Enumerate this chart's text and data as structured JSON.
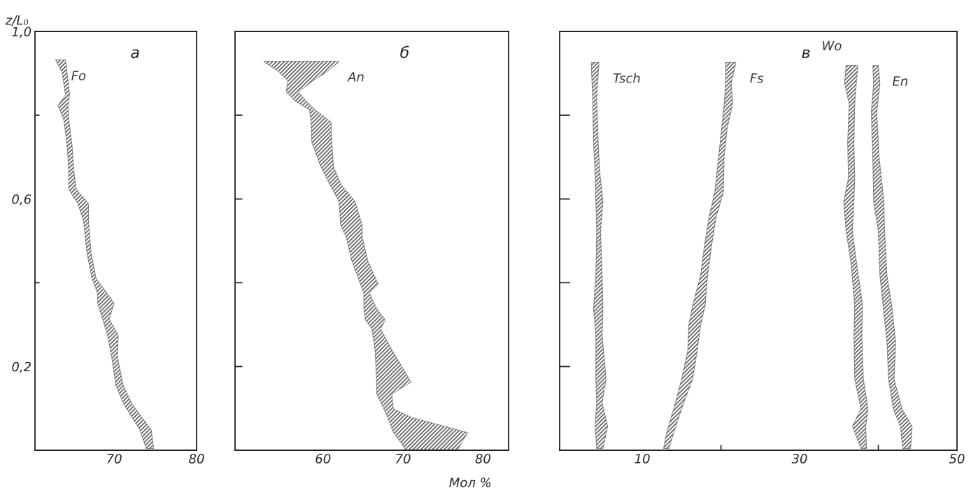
{
  "chart_data": [
    {
      "type": "area",
      "orientation": "horizontal",
      "title": "а",
      "ylabel": "z/L₀",
      "xlim": [
        60.4,
        80
      ],
      "xticks": [
        70,
        80
      ],
      "ylim": [
        0,
        1.0
      ],
      "yticks": [
        {
          "value": 0.2,
          "label": "0,2"
        },
        {
          "value": 0.4,
          "label": null
        },
        {
          "value": 0.6,
          "label": "0,6"
        },
        {
          "value": 0.8,
          "label": null
        },
        {
          "value": 1.0,
          "label": "1,0"
        }
      ],
      "grid": false,
      "series": [
        {
          "name": "Fo",
          "color": "#3a3a3a",
          "x": [
            0.932,
            0.902,
            0.849,
            0.823,
            0.789,
            0.728,
            0.668,
            0.623,
            0.589,
            0.547,
            0.472,
            0.411,
            0.374,
            0.351,
            0.313,
            0.275,
            0.223,
            0.155,
            0.109,
            0.049,
            0.004
          ],
          "values": [
            null,
            null,
            null,
            null,
            null,
            null,
            null,
            null,
            null,
            null,
            null,
            null,
            null,
            null,
            null,
            null,
            null,
            null,
            null,
            null,
            null
          ],
          "lower": [
            62.9,
            63.7,
            64.1,
            63.2,
            63.9,
            64.3,
            64.5,
            64.5,
            65.6,
            66.3,
            66.7,
            67.3,
            68.0,
            68.0,
            68.6,
            69.2,
            69.7,
            70.2,
            71.2,
            73.1,
            73.9
          ],
          "upper": [
            64.1,
            64.3,
            64.6,
            64.4,
            64.5,
            64.9,
            65.1,
            65.4,
            66.9,
            66.9,
            67.2,
            67.8,
            69.2,
            70.0,
            69.4,
            70.5,
            70.4,
            71.1,
            72.2,
            74.5,
            74.8
          ]
        }
      ]
    },
    {
      "type": "area",
      "orientation": "horizontal",
      "title": "б",
      "xlabel": "Мол %",
      "xlim": [
        49,
        83.2
      ],
      "xticks": [
        60,
        70,
        80
      ],
      "ylim": [
        0,
        1.0
      ],
      "tick_labels": "x",
      "yticks": [
        {
          "value": 0.2,
          "label": null
        },
        {
          "value": 0.4,
          "label": null
        },
        {
          "value": 0.6,
          "label": null
        },
        {
          "value": 0.8,
          "label": null
        }
      ],
      "grid": false,
      "series": [
        {
          "name": "An",
          "color": "#3a3a3a",
          "x": [
            0.929,
            0.926,
            0.905,
            0.883,
            0.855,
            0.834,
            0.813,
            0.784,
            0.735,
            0.678,
            0.636,
            0.594,
            0.537,
            0.509,
            0.452,
            0.396,
            0.375,
            0.339,
            0.311,
            0.29,
            0.24,
            0.163,
            0.134,
            0.099,
            0.078,
            0.042,
            0.014,
            0.001
          ],
          "values": [
            null,
            null,
            null,
            null,
            null,
            null,
            null,
            null,
            null,
            null,
            null,
            null,
            null,
            null,
            null,
            null,
            null,
            null,
            null,
            null,
            null,
            null,
            null,
            null,
            null,
            null,
            null,
            null
          ],
          "lower": [
            52.6,
            52.7,
            54.4,
            55.6,
            55.4,
            56.5,
            58.3,
            58.5,
            58.6,
            59.7,
            60.8,
            62.0,
            62.2,
            62.9,
            63.6,
            64.7,
            65.1,
            65.1,
            65.3,
            66.1,
            66.5,
            66.7,
            66.7,
            67.6,
            68.1,
            68.8,
            69.9,
            70.3
          ],
          "upper": [
            61.9,
            61.9,
            60.6,
            58.8,
            56.9,
            57.9,
            59.0,
            61.0,
            61.1,
            61.3,
            62.2,
            64.0,
            64.9,
            64.9,
            65.6,
            66.9,
            65.8,
            66.7,
            67.8,
            67.2,
            68.6,
            71.0,
            68.6,
            68.8,
            71.1,
            78.1,
            77.2,
            76.9
          ]
        }
      ]
    },
    {
      "type": "area",
      "orientation": "horizontal",
      "title": "в",
      "xlim": [
        -0.5,
        50
      ],
      "xticks": [
        10,
        {
          "value": 20,
          "label": null
        },
        30,
        {
          "value": 40,
          "label": null
        },
        50
      ],
      "ylim": [
        0,
        1.0
      ],
      "tick_labels": "x",
      "yticks": [
        {
          "value": 0.2,
          "label": null
        },
        {
          "value": 0.4,
          "label": null
        },
        {
          "value": 0.6,
          "label": null
        },
        {
          "value": 0.8,
          "label": null
        }
      ],
      "grid": false,
      "series": [
        {
          "name": "Tsch",
          "color": "#3a3a3a",
          "x": [
            0.926,
            0.841,
            0.735,
            0.664,
            0.594,
            0.523,
            0.417,
            0.339,
            0.276,
            0.17,
            0.113,
            0.057,
            0.004
          ],
          "values": [
            null,
            null,
            null,
            null,
            null,
            null,
            null,
            null,
            null,
            null,
            null,
            null,
            null
          ],
          "lower": [
            3.5,
            3.7,
            3.8,
            4.0,
            4.1,
            4.2,
            4.1,
            3.8,
            4.1,
            4.1,
            4.2,
            4.0,
            4.2
          ],
          "upper": [
            4.5,
            4.2,
            4.4,
            4.6,
            5.0,
            4.7,
            4.9,
            5.0,
            4.9,
            5.4,
            4.9,
            5.6,
            5.0
          ]
        },
        {
          "name": "Fs",
          "color": "#3a3a3a",
          "x": [
            0.926,
            0.876,
            0.827,
            0.77,
            0.7,
            0.615,
            0.558,
            0.488,
            0.417,
            0.346,
            0.297,
            0.24,
            0.17,
            0.099,
            0.042,
            0.004
          ],
          "values": [
            null,
            null,
            null,
            null,
            null,
            null,
            null,
            null,
            null,
            null,
            null,
            null,
            null,
            null,
            null,
            null
          ],
          "lower": [
            20.6,
            20.6,
            20.4,
            20.1,
            19.7,
            19.2,
            18.5,
            17.9,
            17.4,
            16.4,
            15.9,
            15.8,
            15.0,
            14.0,
            13.1,
            12.7
          ],
          "upper": [
            21.9,
            21.3,
            21.5,
            20.8,
            20.4,
            20.3,
            19.4,
            18.8,
            18.3,
            18.0,
            17.4,
            17.0,
            16.4,
            15.0,
            14.0,
            13.4
          ]
        },
        {
          "name": "Wo",
          "color": "#3a3a3a",
          "x": [
            0.919,
            0.876,
            0.827,
            0.735,
            0.65,
            0.594,
            0.523,
            0.452,
            0.346,
            0.276,
            0.17,
            0.099,
            0.057,
            0.004
          ],
          "values": [
            null,
            null,
            null,
            null,
            null,
            null,
            null,
            null,
            null,
            null,
            null,
            null,
            null,
            null
          ],
          "lower": [
            35.9,
            35.7,
            36.3,
            36.1,
            36.2,
            35.6,
            35.9,
            36.5,
            37.0,
            36.9,
            37.0,
            37.8,
            36.7,
            37.8
          ],
          "upper": [
            37.4,
            37.2,
            37.0,
            36.9,
            37.0,
            36.9,
            36.7,
            37.2,
            38.0,
            37.9,
            38.1,
            38.7,
            38.4,
            38.5
          ]
        },
        {
          "name": "En",
          "color": "#3a3a3a",
          "x": [
            0.919,
            0.876,
            0.806,
            0.7,
            0.594,
            0.523,
            0.417,
            0.346,
            0.258,
            0.17,
            0.099,
            0.057,
            0.004
          ],
          "values": [
            null,
            null,
            null,
            null,
            null,
            null,
            null,
            null,
            null,
            null,
            null,
            null,
            null
          ],
          "lower": [
            39.3,
            39.4,
            39.1,
            39.3,
            39.4,
            40.0,
            40.2,
            40.6,
            41.1,
            41.3,
            41.9,
            42.8,
            43.1
          ],
          "upper": [
            40.0,
            40.2,
            39.8,
            40.1,
            40.7,
            40.8,
            41.1,
            41.7,
            42.2,
            42.0,
            43.0,
            44.3,
            44.1
          ]
        }
      ]
    }
  ]
}
